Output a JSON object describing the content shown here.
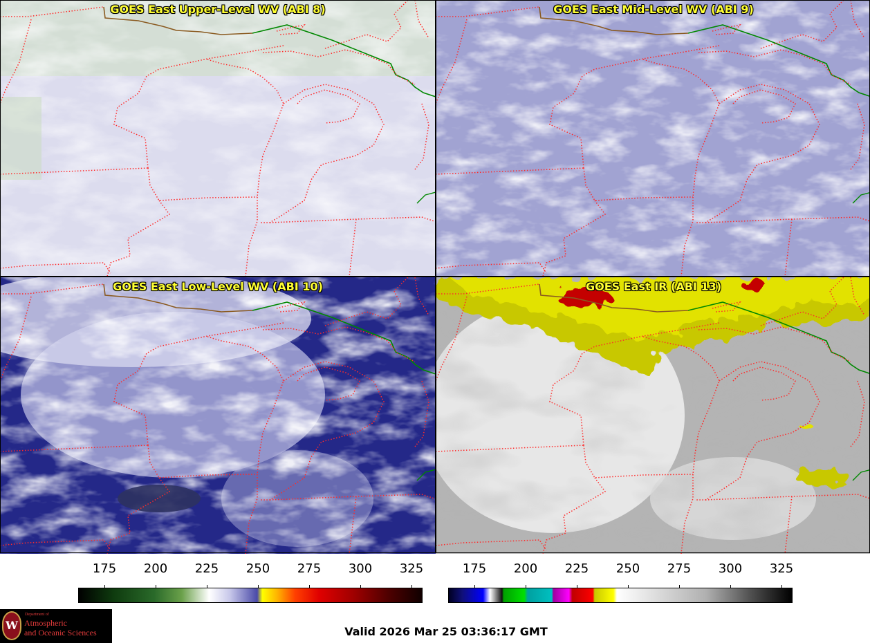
{
  "panels": [
    {
      "title": "GOES East Upper-Level WV (ABI 8)"
    },
    {
      "title": "GOES East Mid-Level WV (ABI 9)"
    },
    {
      "title": "GOES East Low-Level WV (ABI 10)"
    },
    {
      "title": "GOES East IR (ABI 13)"
    }
  ],
  "colorbars": [
    {
      "ticks": [
        "175",
        "200",
        "225",
        "250",
        "275",
        "300",
        "325"
      ]
    },
    {
      "ticks": [
        "175",
        "200",
        "225",
        "250",
        "275",
        "300",
        "325"
      ]
    }
  ],
  "footer": {
    "valid": "Valid 2026 Mar 25 03:36:17 GMT"
  },
  "logo": {
    "line1": "Department of",
    "line2": "Atmospheric",
    "line3": "and Oceanic Sciences",
    "seal_letter": "W"
  },
  "colors": {
    "state_border": "#ff2a2a",
    "country_border": "#008800",
    "shoreline": "#7a5a2a",
    "title_text": "#ffff33"
  }
}
